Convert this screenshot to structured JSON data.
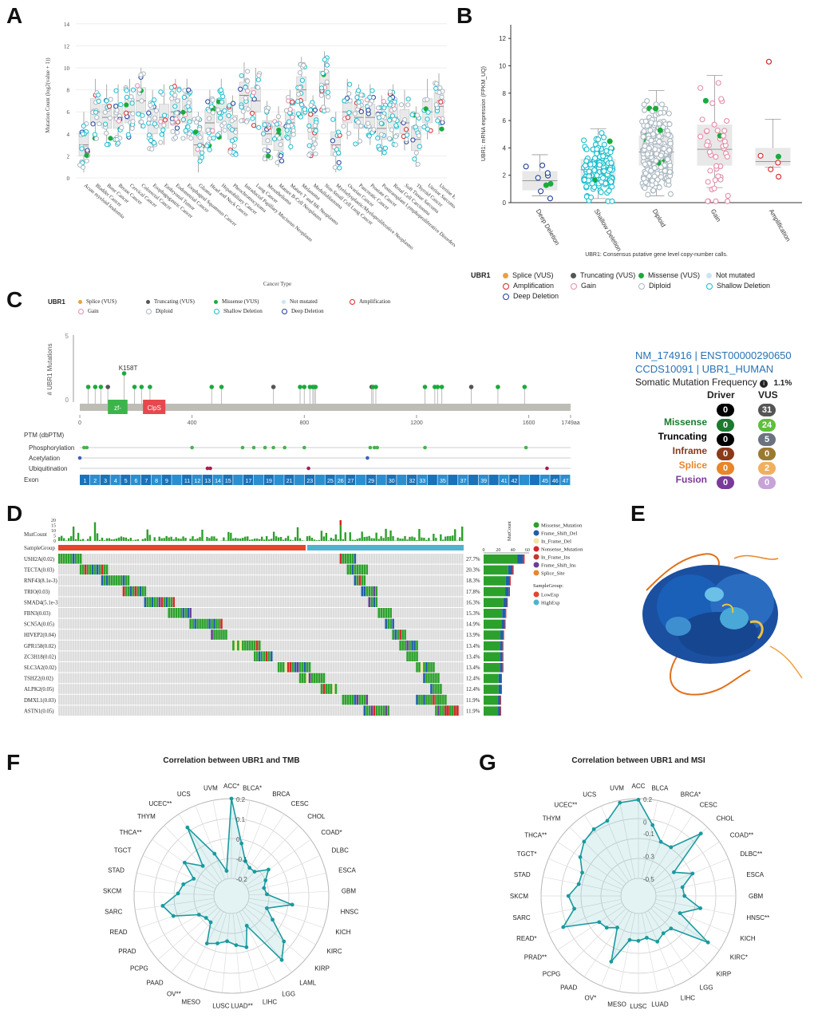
{
  "panels": {
    "A": "A",
    "B": "B",
    "C": "C",
    "D": "D",
    "E": "E",
    "F": "F",
    "G": "G"
  },
  "colors": {
    "missense": "#1aab3c",
    "truncating": "#555555",
    "splice": "#e8a23a",
    "amplification": "#d62728",
    "gain": "#e58ca7",
    "diploid": "#aab7c1",
    "shallow": "#17becf",
    "deep": "#1f3d99",
    "notmut": "#c8e6f5",
    "radar": "#1a9aa0",
    "low": "#e6452c",
    "high": "#4fb3cf"
  },
  "panelA": {
    "ylabel": "Mutation Count (log2(value + 1))",
    "xlabel": "Cancer Type",
    "yticks": [
      "0",
      "2",
      "4",
      "6",
      "8",
      "10",
      "12",
      "14"
    ],
    "categories": [
      "Acute myeloid leukemia",
      "Bladder Cancer",
      "Bone Cancer",
      "Breast Cancer",
      "Cervical Cancer",
      "Colorectal Cancer",
      "Esophagogastric Cancer",
      "Embryonal Tumor",
      "Endometrial Cancer",
      "Esophageal Squamous Cancer",
      "Glioma",
      "Head and Neck Cancer",
      "Hepatobiliary Cancer",
      "Pheochromocytoma",
      "Intraductal Papillary Mucinous Neoplasm",
      "Lung Cancer",
      "Mesothelioma",
      "Mature B-Cell Neoplasms",
      "Mature T and NK Neoplasms",
      "Melanoma",
      "Medulloblastoma",
      "Non-Small Cell Lung Cancer",
      "Myelodysplastic/Myeloproliferative Neoplasms",
      "Ovarian Cancer",
      "Pancreatic Cancer",
      "Prostate Cancer",
      "Posttransplant Lymphoproliferative Disorders",
      "Renal Cell Carcinoma",
      "Soft Tissue Sarcoma",
      "Thyroid Cancer",
      "Uterine Sarcoma",
      "Uterine Endometrioid Carcinoma"
    ]
  },
  "panelB": {
    "ylabel": "UBR1: mRNA expression (FPKM_UQ)",
    "xlabel": "UBR1: Consensus putative gene level copy-number calls.",
    "yticks": [
      "0",
      "2",
      "4",
      "6",
      "8",
      "10",
      "12"
    ],
    "categories": [
      "Deep Deletion",
      "Shallow Deletion",
      "Diploid",
      "Gain",
      "Amplification"
    ],
    "legend_title": "UBR1",
    "legend": [
      "Splice (VUS)",
      "Truncating (VUS)",
      "Missense (VUS)",
      "Not mutated",
      "Amplification",
      "Gain",
      "Diploid",
      "Shallow Deletion",
      "Deep Deletion"
    ]
  },
  "panelC": {
    "legend_title": "UBR1",
    "legend": [
      "Splice (VUS)",
      "Truncating (VUS)",
      "Missense (VUS)",
      "Not mutated",
      "Amplification",
      "Gain",
      "Diploid",
      "Shallow Deletion",
      "Deep Deletion"
    ],
    "ylabel": "# UBR1 Mutations",
    "ytick_top": "5",
    "ytick_bottom": "0",
    "annotation": "K158T",
    "domains": [
      "zf-",
      "ClpS"
    ],
    "xticks": [
      "0",
      "400",
      "800",
      "1200",
      "1600",
      "1749aa"
    ],
    "ptm_title": "PTM (dbPTM)",
    "ptm_tracks": [
      "Phosphorylation",
      "Acetylation",
      "Ubiquitination"
    ],
    "exon_label": "Exon",
    "exons": [
      "1",
      "2",
      "3",
      "4",
      "5",
      "6",
      "7",
      "8",
      "9",
      "",
      "11",
      "12",
      "13",
      "14",
      "15",
      "",
      "17",
      "",
      "19",
      "",
      "21",
      "",
      "23",
      "",
      "25",
      "26",
      "27",
      "",
      "29",
      "",
      "30",
      "",
      "32",
      "33",
      "",
      "35",
      "",
      "37",
      "",
      "39",
      "",
      "41",
      "42",
      "",
      "",
      "45",
      "46",
      "47"
    ],
    "transcript_ids": [
      "NM_174916",
      "ENST00000290650"
    ],
    "ccds_ids": [
      "CCDS10091",
      "UBR1_HUMAN"
    ],
    "smf_label": "Somatic Mutation Frequency",
    "smf_value": "1.1%",
    "table_headers": [
      "Driver",
      "VUS"
    ],
    "total_row": [
      "0",
      "31"
    ],
    "rows": [
      {
        "label": "Missense",
        "driver": "0",
        "vus": "24",
        "color": "#1a7a2e",
        "dcolor": "#1a7a2e",
        "vcolor": "#5fbf3a"
      },
      {
        "label": "Truncating",
        "driver": "0",
        "vus": "5",
        "color": "#000000",
        "dcolor": "#000000",
        "vcolor": "#6b7380"
      },
      {
        "label": "Inframe",
        "driver": "0",
        "vus": "0",
        "color": "#8a3a1a",
        "dcolor": "#8a3a1a",
        "vcolor": "#9a7a30"
      },
      {
        "label": "Splice",
        "driver": "0",
        "vus": "2",
        "color": "#e8862a",
        "dcolor": "#e8862a",
        "vcolor": "#f0b060"
      },
      {
        "label": "Fusion",
        "driver": "0",
        "vus": "0",
        "color": "#7a3a9a",
        "dcolor": "#7a3a9a",
        "vcolor": "#c7a3d8"
      }
    ]
  },
  "panelD": {
    "mutcount_label": "MutCount",
    "mutcount_ticks": [
      "20",
      "15",
      "10",
      "5",
      "0"
    ],
    "samplegroup_label": "SampleGroup",
    "genes": [
      "USH2A(0.02)",
      "TECTA(0.03)",
      "RNF43(8.1e-3)",
      "TRIO(0.03)",
      "SMAD4(5.1e-3)",
      "FBN3(0.03)",
      "SCN5A(0.05)",
      "HIVEP2(0.04)",
      "GPR158(0.02)",
      "ZC3H18(0.02)",
      "SLC3A2(0.02)",
      "TSHZ2(0.02)",
      "ALPK2(0.05)",
      "DMXL1(0.03)",
      "ASTN1(0.05)"
    ],
    "percents": [
      "27.7%",
      "20.3%",
      "18.3%",
      "17.8%",
      "16.3%",
      "15.3%",
      "14.9%",
      "13.9%",
      "13.4%",
      "13.4%",
      "13.4%",
      "12.4%",
      "12.4%",
      "11.9%",
      "11.9%"
    ],
    "bar_values": [
      56,
      41,
      37,
      36,
      33,
      31,
      30,
      28,
      27,
      27,
      27,
      25,
      25,
      24,
      24
    ],
    "side_ticks": [
      "0",
      "20",
      "40",
      "60"
    ],
    "side_axis_label": "MutCount",
    "legend": [
      {
        "label": "Missense_Mutation",
        "color": "#2ca02c"
      },
      {
        "label": "Frame_Shift_Del",
        "color": "#1f5fa8"
      },
      {
        "label": "In_Frame_Del",
        "color": "#f2e6a0"
      },
      {
        "label": "Nonsense_Mutation",
        "color": "#d62728"
      },
      {
        "label": "In_Frame_Ins",
        "color": "#c0392b"
      },
      {
        "label": "Frame_Shift_Ins",
        "color": "#6a3d9a"
      },
      {
        "label": "Splice_Site",
        "color": "#e8862a"
      }
    ],
    "group_legend_title": "SampleGroup:",
    "group_legend": [
      {
        "label": "LowExp",
        "color": "#e6452c"
      },
      {
        "label": "HighExp",
        "color": "#4fb3cf"
      }
    ]
  },
  "chart_data": [
    {
      "type": "radar",
      "title": "Correlation between UBR1 and TMB",
      "rlim": [
        -0.2,
        0.2
      ],
      "ring_labels": [
        "0.2",
        "0.1",
        "0",
        "-0.1",
        "-0.2"
      ],
      "categories": [
        "ACC*",
        "BLCA*",
        "BRCA",
        "CESC",
        "CHOL",
        "COAD*",
        "DLBC",
        "ESCA",
        "GBM",
        "HNSC",
        "KICH",
        "KIRC",
        "KIRP",
        "LAML",
        "LGG",
        "LIHC",
        "LUAD**",
        "LUSC",
        "MESO",
        "OV**",
        "PAAD",
        "PCPG",
        "PRAD",
        "READ",
        "SARC",
        "SKCM",
        "STAD",
        "TGCT",
        "THCA**",
        "THYM",
        "UCEC**",
        "UCS",
        "UVM"
      ],
      "values": [
        0.2,
        -0.02,
        -0.1,
        -0.12,
        -0.12,
        -0.06,
        -0.1,
        -0.12,
        -0.11,
        0.02,
        -0.1,
        -0.05,
        0.06,
        0.12,
        -0.12,
        -0.02,
        -0.04,
        -0.06,
        -0.04,
        -0.02,
        -0.12,
        -0.12,
        -0.1,
        0.02,
        0.06,
        -0.02,
        -0.04,
        -0.08,
        0.0,
        -0.08,
        0.12,
        -0.06,
        -0.16
      ]
    },
    {
      "type": "radar",
      "title": "Correlation between UBR1 and MSI",
      "rlim": [
        -0.5,
        0.2
      ],
      "ring_labels": [
        "0.2",
        "0",
        "-0.1",
        "-0.3",
        "-0.5"
      ],
      "categories": [
        "ACC",
        "BLCA",
        "BRCA*",
        "CESC",
        "CHOL",
        "COAD**",
        "DLBC**",
        "ESCA",
        "GBM",
        "HNSC**",
        "KICH",
        "KIRC*",
        "KIRP",
        "LGG",
        "LIHC",
        "LUAD",
        "LUSC",
        "MESO",
        "OV*",
        "PAAD",
        "PCPG",
        "PRAD**",
        "READ*",
        "SARC",
        "SKCM",
        "STAD",
        "TGCT*",
        "THCA**",
        "THYM",
        "UCEC**",
        "UCS",
        "UVM"
      ],
      "values": [
        0.19,
        -0.02,
        -0.14,
        -0.14,
        0.12,
        -0.28,
        -0.14,
        -0.26,
        -0.25,
        -0.1,
        -0.26,
        0.08,
        -0.25,
        -0.26,
        -0.22,
        -0.28,
        -0.26,
        -0.26,
        -0.03,
        -0.32,
        -0.26,
        -0.24,
        0.06,
        -0.08,
        -0.04,
        -0.12,
        -0.12,
        -0.04,
        0.02,
        0.05,
        0.06,
        0.18
      ]
    }
  ]
}
